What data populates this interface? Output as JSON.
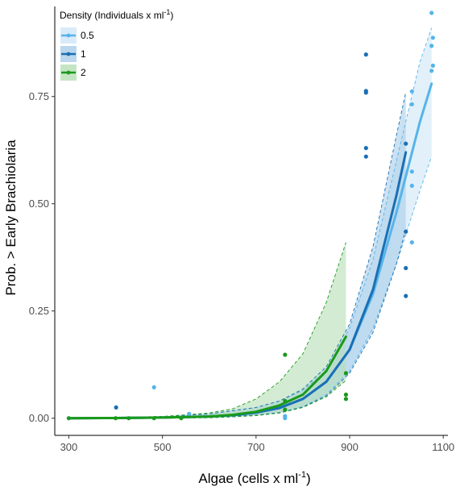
{
  "chart_data": {
    "type": "line",
    "xlabel": "Algae (cells x ml",
    "xlabel_sup": "-1",
    "xlabel_end": ")",
    "ylabel": "Prob. > Early Brachiolaria",
    "xlim": [
      270,
      1110
    ],
    "ylim": [
      -0.04,
      0.96
    ],
    "x_ticks": [
      300,
      500,
      700,
      900,
      1100
    ],
    "y_ticks": [
      0.0,
      0.25,
      0.5,
      0.75
    ],
    "y_tick_labels": [
      "0.00",
      "0.25",
      "0.50",
      "0.75"
    ],
    "x_tick_labels": [
      "300",
      "500",
      "700",
      "900",
      "1100"
    ],
    "grid": false,
    "legend": {
      "title": "Density (Individuals x ml",
      "title_sup": "-1",
      "title_end": ")",
      "placement": "top-left"
    },
    "series": [
      {
        "name": "0.5",
        "color": "#56b4e9",
        "fill": "#cfe6f7",
        "x_range": [
          300,
          1075
        ],
        "fit": [
          [
            300,
            0.0
          ],
          [
            400,
            0.0005
          ],
          [
            500,
            0.0015
          ],
          [
            600,
            0.004
          ],
          [
            650,
            0.007
          ],
          [
            700,
            0.013
          ],
          [
            750,
            0.024
          ],
          [
            800,
            0.045
          ],
          [
            850,
            0.085
          ],
          [
            900,
            0.16
          ],
          [
            950,
            0.29
          ],
          [
            1000,
            0.48
          ],
          [
            1050,
            0.69
          ],
          [
            1075,
            0.78
          ]
        ],
        "ci_upper": [
          [
            300,
            0.0
          ],
          [
            500,
            0.004
          ],
          [
            600,
            0.01
          ],
          [
            700,
            0.025
          ],
          [
            750,
            0.04
          ],
          [
            800,
            0.065
          ],
          [
            850,
            0.11
          ],
          [
            900,
            0.21
          ],
          [
            950,
            0.37
          ],
          [
            1000,
            0.6
          ],
          [
            1050,
            0.83
          ],
          [
            1075,
            0.91
          ]
        ],
        "ci_lower": [
          [
            300,
            0.0
          ],
          [
            500,
            0.0
          ],
          [
            600,
            0.002
          ],
          [
            700,
            0.007
          ],
          [
            750,
            0.013
          ],
          [
            800,
            0.027
          ],
          [
            850,
            0.055
          ],
          [
            900,
            0.11
          ],
          [
            950,
            0.21
          ],
          [
            1000,
            0.36
          ],
          [
            1050,
            0.53
          ],
          [
            1075,
            0.61
          ]
        ],
        "points": [
          [
            482,
            0.072
          ],
          [
            557,
            0.01
          ],
          [
            762,
            0.0
          ],
          [
            762,
            0.005
          ],
          [
            1075,
            0.945
          ],
          [
            1078,
            0.887
          ],
          [
            1075,
            0.868
          ],
          [
            1078,
            0.822
          ],
          [
            1075,
            0.81
          ],
          [
            1033,
            0.762
          ],
          [
            1033,
            0.732
          ],
          [
            1033,
            0.575
          ],
          [
            1033,
            0.542
          ],
          [
            1033,
            0.41
          ]
        ]
      },
      {
        "name": "1",
        "color": "#1a6fb5",
        "fill": "#a9cde8",
        "x_range": [
          300,
          1020
        ],
        "fit": [
          [
            300,
            0.0
          ],
          [
            400,
            0.0005
          ],
          [
            500,
            0.0015
          ],
          [
            600,
            0.004
          ],
          [
            650,
            0.007
          ],
          [
            700,
            0.013
          ],
          [
            750,
            0.024
          ],
          [
            800,
            0.045
          ],
          [
            850,
            0.085
          ],
          [
            900,
            0.16
          ],
          [
            950,
            0.3
          ],
          [
            1000,
            0.52
          ],
          [
            1020,
            0.62
          ]
        ],
        "ci_upper": [
          [
            300,
            0.0
          ],
          [
            500,
            0.004
          ],
          [
            600,
            0.01
          ],
          [
            700,
            0.025
          ],
          [
            750,
            0.04
          ],
          [
            800,
            0.068
          ],
          [
            850,
            0.12
          ],
          [
            900,
            0.22
          ],
          [
            950,
            0.4
          ],
          [
            1000,
            0.66
          ],
          [
            1020,
            0.76
          ]
        ],
        "ci_lower": [
          [
            300,
            0.0
          ],
          [
            500,
            0.0
          ],
          [
            600,
            0.002
          ],
          [
            700,
            0.007
          ],
          [
            750,
            0.013
          ],
          [
            800,
            0.026
          ],
          [
            850,
            0.052
          ],
          [
            900,
            0.105
          ],
          [
            950,
            0.2
          ],
          [
            1000,
            0.36
          ],
          [
            1020,
            0.44
          ]
        ],
        "points": [
          [
            401,
            0.025
          ],
          [
            935,
            0.848
          ],
          [
            935,
            0.763
          ],
          [
            935,
            0.759
          ],
          [
            935,
            0.63
          ],
          [
            935,
            0.61
          ],
          [
            1020,
            0.64
          ],
          [
            1020,
            0.435
          ],
          [
            1020,
            0.35
          ],
          [
            1020,
            0.285
          ]
        ]
      },
      {
        "name": "2",
        "color": "#1a9a1a",
        "fill": "#b5deb5",
        "x_range": [
          300,
          892
        ],
        "fit": [
          [
            300,
            0.0
          ],
          [
            400,
            0.0005
          ],
          [
            500,
            0.0015
          ],
          [
            600,
            0.004
          ],
          [
            650,
            0.008
          ],
          [
            700,
            0.015
          ],
          [
            750,
            0.03
          ],
          [
            800,
            0.055
          ],
          [
            850,
            0.11
          ],
          [
            892,
            0.19
          ]
        ],
        "ci_upper": [
          [
            300,
            0.0
          ],
          [
            500,
            0.004
          ],
          [
            600,
            0.012
          ],
          [
            650,
            0.022
          ],
          [
            700,
            0.045
          ],
          [
            750,
            0.085
          ],
          [
            800,
            0.15
          ],
          [
            850,
            0.27
          ],
          [
            892,
            0.41
          ]
        ],
        "ci_lower": [
          [
            300,
            0.0
          ],
          [
            500,
            0.0
          ],
          [
            600,
            0.001
          ],
          [
            650,
            0.003
          ],
          [
            700,
            0.006
          ],
          [
            750,
            0.012
          ],
          [
            800,
            0.025
          ],
          [
            850,
            0.05
          ],
          [
            892,
            0.088
          ]
        ],
        "points": [
          [
            300,
            0.0
          ],
          [
            400,
            0.0
          ],
          [
            428,
            0.0
          ],
          [
            482,
            0.0
          ],
          [
            540,
            0.0
          ],
          [
            762,
            0.148
          ],
          [
            762,
            0.04
          ],
          [
            762,
            0.02
          ],
          [
            892,
            0.105
          ],
          [
            892,
            0.055
          ],
          [
            892,
            0.045
          ]
        ]
      }
    ]
  }
}
